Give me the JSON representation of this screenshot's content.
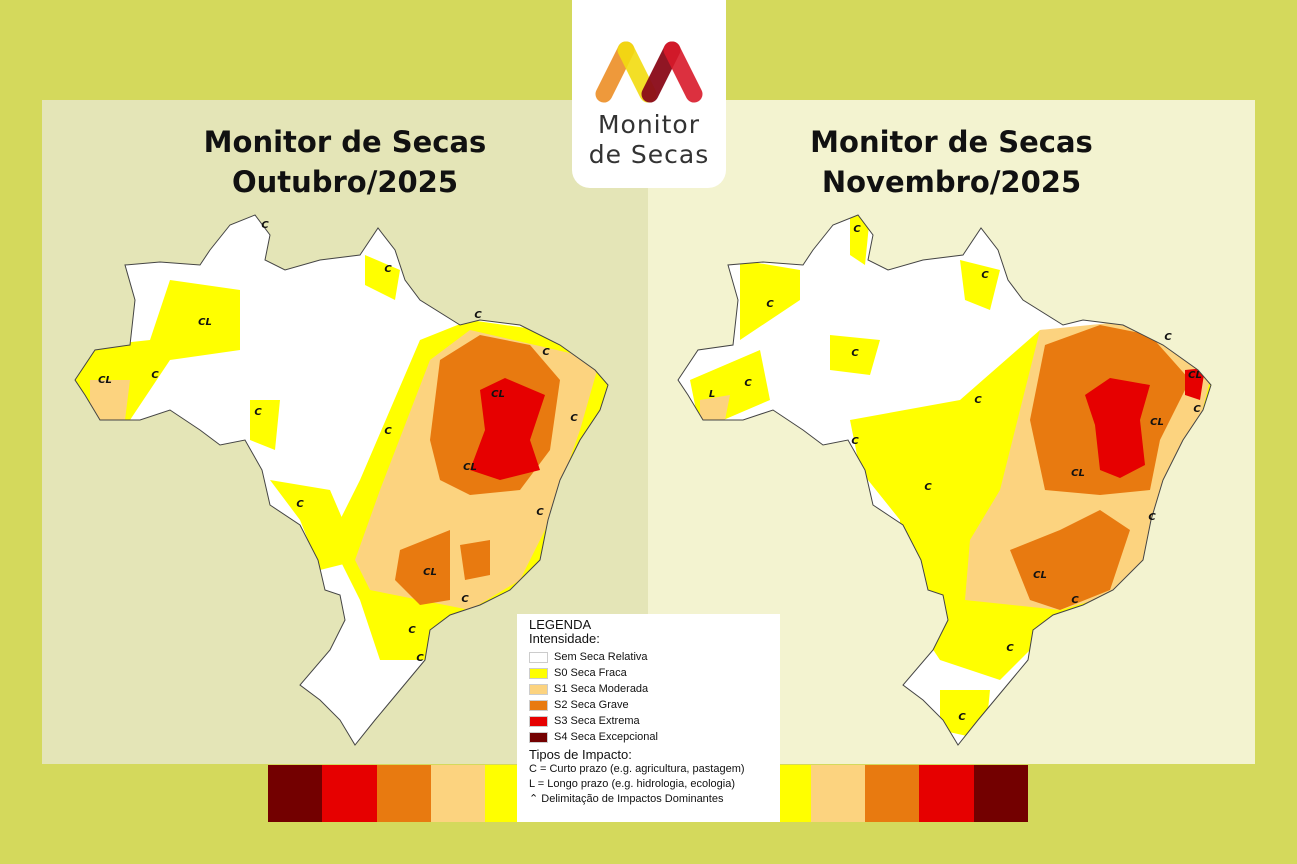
{
  "logo": {
    "line1": "Monitor",
    "line2": "de Secas"
  },
  "left_map": {
    "title_line1": "Monitor de Secas",
    "title_line2": "Outubro/2025",
    "labels": [
      "C",
      "CL",
      "C",
      "CL",
      "C",
      "CL",
      "C",
      "C",
      "C",
      "CL",
      "C",
      "CL",
      "C",
      "C",
      "C",
      "C",
      "C",
      "C"
    ]
  },
  "right_map": {
    "title_line1": "Monitor de Secas",
    "title_line2": "Novembro/2025",
    "labels": [
      "C",
      "C",
      "C",
      "C",
      "C",
      "L",
      "C",
      "C",
      "C",
      "CL",
      "CL",
      "C",
      "CL",
      "C",
      "CL",
      "C",
      "C",
      "C",
      "C"
    ]
  },
  "legend": {
    "title": "LEGENDA",
    "intensity_heading": "Intensidade:",
    "items": [
      {
        "label": "Sem Seca Relativa",
        "color": "#ffffff"
      },
      {
        "label": "S0 Seca Fraca",
        "color": "#ffff00"
      },
      {
        "label": "S1 Seca Moderada",
        "color": "#fcd37f"
      },
      {
        "label": "S2 Seca Grave",
        "color": "#e87a10"
      },
      {
        "label": "S3 Seca Extrema",
        "color": "#e60000"
      },
      {
        "label": "S4 Seca Excepcional",
        "color": "#730000"
      }
    ],
    "impact_heading": "Tipos de Impacto:",
    "impact_c": "C = Curto prazo (e.g. agricultura, pastagem)",
    "impact_l": "L = Longo prazo (e.g. hidrologia, ecologia)",
    "impact_line": "Delimitação de Impactos Dominantes"
  },
  "color_bar": [
    "#730000",
    "#e60000",
    "#e87a10",
    "#fcd37f",
    "#ffff00",
    "#ffff00",
    "#ffff00",
    "#ffff00",
    "#ffff00",
    "#ffff00",
    "#fcd37f",
    "#e87a10",
    "#e60000",
    "#730000"
  ],
  "colors": {
    "background": "#d4d95c",
    "panel_left": "#e4e5b7",
    "panel_right": "#f3f3d0"
  }
}
